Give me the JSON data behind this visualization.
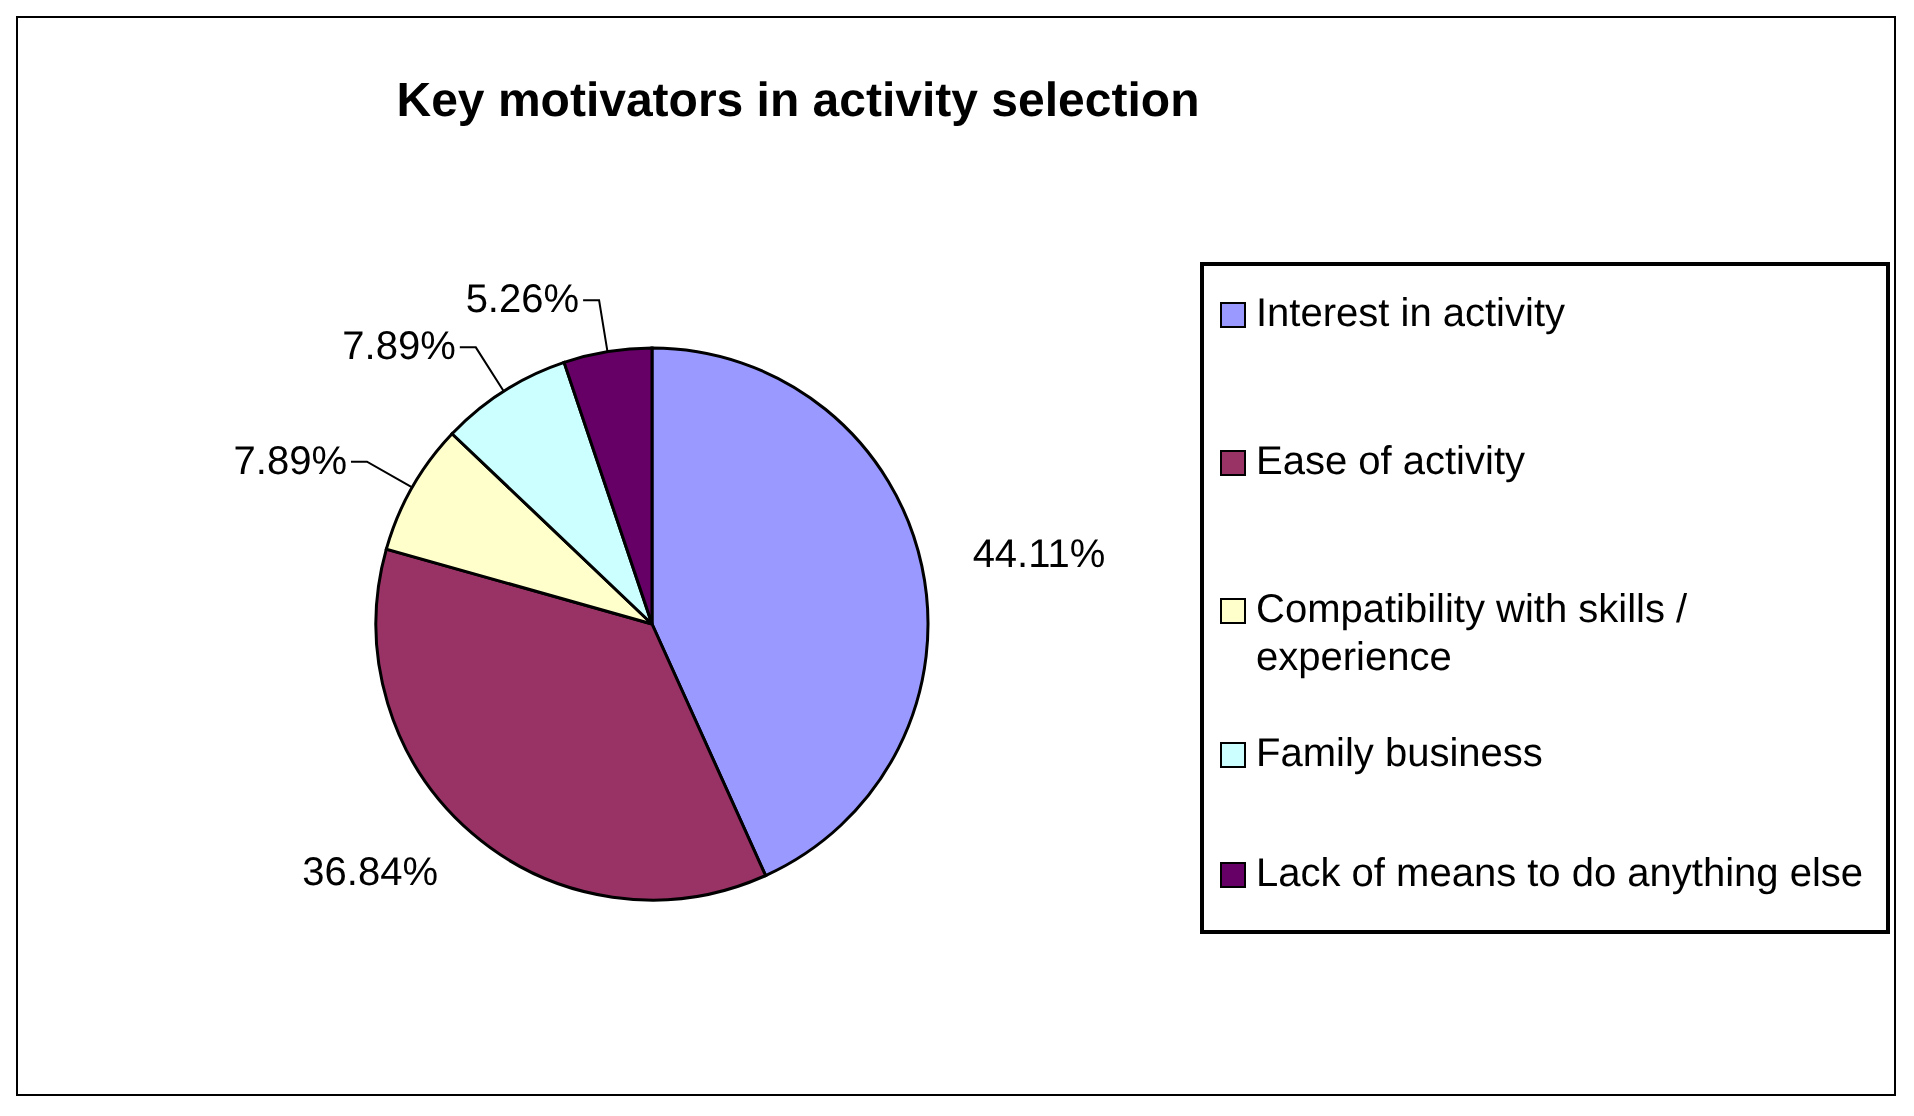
{
  "chart_data": {
    "type": "pie",
    "title": "Key motivators in activity selection",
    "categories": [
      "Interest in activity",
      "Ease of activity",
      "Compatibility with skills / experience",
      "Family business",
      "Lack of means to do anything else"
    ],
    "values": [
      44.11,
      36.84,
      7.89,
      7.89,
      5.26
    ],
    "value_labels": [
      "44.11%",
      "36.84%",
      "7.89%",
      "7.89%",
      "5.26%"
    ],
    "colors": [
      "#9999ff",
      "#993366",
      "#ffffcc",
      "#ccffff",
      "#660066"
    ],
    "legend": "right"
  }
}
